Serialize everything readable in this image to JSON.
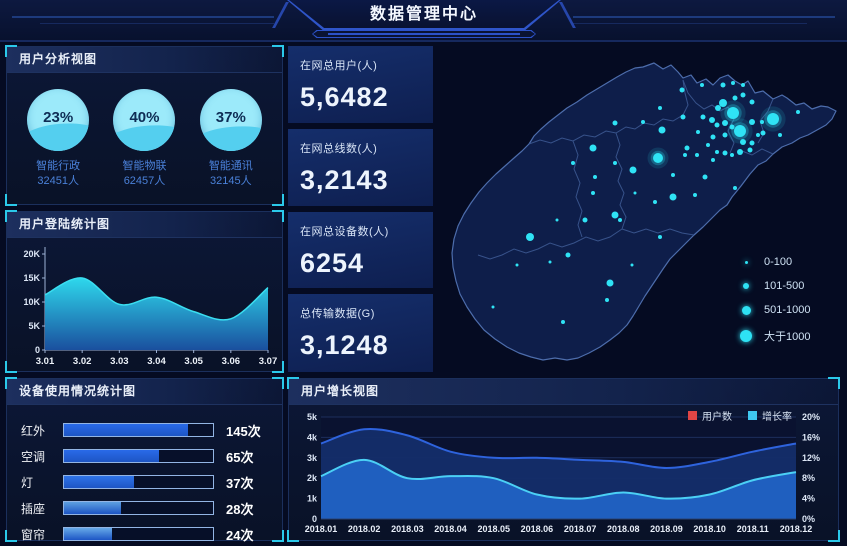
{
  "header": {
    "title": "数据管理中心"
  },
  "panels": {
    "user_analysis": {
      "title": "用户分析视图",
      "gauges": [
        {
          "percent": "23%",
          "label": "智能行政",
          "count": "32451人"
        },
        {
          "percent": "40%",
          "label": "智能物联",
          "count": "62457人"
        },
        {
          "percent": "37%",
          "label": "智能通讯",
          "count": "32145人"
        }
      ]
    },
    "login_stats": {
      "title": "用户登陆统计图"
    },
    "device_usage": {
      "title": "设备使用情况统计图",
      "rows": [
        {
          "label": "红外",
          "value": "145次"
        },
        {
          "label": "空调",
          "value": "65次"
        },
        {
          "label": "灯",
          "value": "37次"
        },
        {
          "label": "插座",
          "value": "28次"
        },
        {
          "label": "窗帘",
          "value": "24次"
        }
      ]
    },
    "user_growth": {
      "title": "用户增长视图",
      "legend": [
        {
          "label": "用户数",
          "swatch": "#e04545"
        },
        {
          "label": "增长率",
          "swatch": "#3fc8f0"
        }
      ]
    }
  },
  "stats_cards": [
    {
      "label": "在网总用户(人)",
      "value": "5,6482"
    },
    {
      "label": "在网总线数(人)",
      "value": "3,2143"
    },
    {
      "label": "在网总设备数(人)",
      "value": "6254"
    },
    {
      "label": "总传输数据(G)",
      "value": "3,1248"
    }
  ],
  "map": {
    "legend": [
      {
        "label": "0-100",
        "size": 3
      },
      {
        "label": "101-500",
        "size": 6
      },
      {
        "label": "501-1000",
        "size": 9
      },
      {
        "label": "大于1000",
        "size": 12
      }
    ],
    "dots": [
      [
        293,
        58,
        4
      ],
      [
        303,
        68,
        6
      ],
      [
        310,
        86,
        6
      ],
      [
        343,
        74,
        6
      ],
      [
        288,
        63,
        3
      ],
      [
        282,
        75,
        3
      ],
      [
        287,
        80,
        2.5
      ],
      [
        295,
        78,
        3
      ],
      [
        302,
        82,
        2.5
      ],
      [
        313,
        50,
        2.5
      ],
      [
        305,
        53,
        2.5
      ],
      [
        322,
        77,
        3
      ],
      [
        333,
        88,
        2.5
      ],
      [
        328,
        90,
        2
      ],
      [
        313,
        97,
        3
      ],
      [
        322,
        98,
        2.5
      ],
      [
        295,
        90,
        2.5
      ],
      [
        283,
        92,
        2.5
      ],
      [
        278,
        100,
        2
      ],
      [
        287,
        107,
        2
      ],
      [
        295,
        108,
        2.5
      ],
      [
        302,
        110,
        2
      ],
      [
        310,
        107,
        3
      ],
      [
        320,
        105,
        2.5
      ],
      [
        283,
        115,
        2
      ],
      [
        267,
        110,
        2
      ],
      [
        257,
        103,
        2.5
      ],
      [
        255,
        110,
        2
      ],
      [
        273,
        72,
        2.5
      ],
      [
        268,
        87,
        2
      ],
      [
        253,
        72,
        2.5
      ],
      [
        232,
        85,
        3.5
      ],
      [
        213,
        77,
        2
      ],
      [
        230,
        63,
        2
      ],
      [
        185,
        78,
        2.5
      ],
      [
        252,
        45,
        2.5
      ],
      [
        272,
        40,
        2
      ],
      [
        293,
        40,
        2.5
      ],
      [
        303,
        38,
        2
      ],
      [
        313,
        40,
        2
      ],
      [
        322,
        57,
        2.5
      ],
      [
        332,
        77,
        2
      ],
      [
        368,
        67,
        2
      ],
      [
        350,
        90,
        2
      ],
      [
        228,
        113,
        5
      ],
      [
        203,
        125,
        3.5
      ],
      [
        185,
        118,
        2
      ],
      [
        165,
        132,
        2
      ],
      [
        275,
        132,
        2.5
      ],
      [
        243,
        130,
        2
      ],
      [
        305,
        143,
        2
      ],
      [
        243,
        152,
        3.5
      ],
      [
        265,
        150,
        2
      ],
      [
        225,
        157,
        2
      ],
      [
        205,
        148,
        1.5
      ],
      [
        163,
        103,
        3.5
      ],
      [
        143,
        118,
        2
      ],
      [
        163,
        148,
        2
      ],
      [
        185,
        170,
        3.5
      ],
      [
        190,
        175,
        2
      ],
      [
        155,
        175,
        2.5
      ],
      [
        127,
        175,
        1.5
      ],
      [
        230,
        192,
        2
      ],
      [
        100,
        192,
        4
      ],
      [
        120,
        217,
        1.5
      ],
      [
        138,
        210,
        2.5
      ],
      [
        87,
        220,
        1.5
      ],
      [
        180,
        238,
        3.5
      ],
      [
        202,
        220,
        1.5
      ],
      [
        177,
        255,
        2
      ],
      [
        63,
        262,
        1.5
      ],
      [
        133,
        277,
        2
      ]
    ]
  },
  "colors": {
    "accent_cyan": "#2fe3f5",
    "series_users_line": "#2e63dd",
    "series_users_fill": "#142e69",
    "series_growth_line": "#4bd0f5",
    "series_growth_fill": "#2061c2",
    "legend_users_swatch": "#e04545",
    "legend_growth_swatch": "#3fc8f0"
  },
  "chart_data": [
    {
      "type": "area",
      "title": "用户登陆统计图",
      "x": [
        "3.01",
        "3.02",
        "3.03",
        "3.04",
        "3.05",
        "3.06",
        "3.07"
      ],
      "values": [
        11500,
        15000,
        9500,
        11000,
        8000,
        6500,
        13000
      ],
      "ylim": [
        0,
        20000
      ],
      "yticks": [
        "0",
        "5K",
        "10K",
        "15K",
        "20K"
      ],
      "grid": false,
      "legend_position": "none"
    },
    {
      "type": "bar",
      "title": "设备使用情况统计图",
      "orientation": "horizontal",
      "categories": [
        "红外",
        "空调",
        "灯",
        "插座",
        "窗帘"
      ],
      "values": [
        145,
        65,
        37,
        28,
        24
      ],
      "unit": "次",
      "fill_pct": [
        83,
        64,
        47,
        38,
        32
      ],
      "colors": [
        "#2a6ae8",
        "#2a6ae8",
        "#2f74e8",
        "#5d9fe0",
        "#66a9e8"
      ]
    },
    {
      "type": "area",
      "title": "用户增长视图",
      "x": [
        "2018.01",
        "2018.02",
        "2018.03",
        "2018.04",
        "2018.05",
        "2018.06",
        "2018.07",
        "2018.08",
        "2018.09",
        "2018.10",
        "2018.11",
        "2018.12"
      ],
      "series": [
        {
          "name": "用户数",
          "axis": "left",
          "values": [
            3700,
            4400,
            4100,
            3300,
            3000,
            3000,
            2900,
            2800,
            2500,
            2800,
            3300,
            3700
          ]
        },
        {
          "name": "增长率",
          "axis": "right",
          "values": [
            8.4,
            11.6,
            8,
            8.4,
            8,
            4.8,
            4,
            5.2,
            4,
            4.8,
            7.6,
            9.2
          ]
        }
      ],
      "ylim_left": [
        0,
        5000
      ],
      "yticks_left": [
        "0",
        "1k",
        "2k",
        "3k",
        "4k",
        "5k"
      ],
      "ylim_right": [
        0,
        20
      ],
      "yticks_right": [
        "0%",
        "4%",
        "8%",
        "12%",
        "16%",
        "20%"
      ],
      "legend": [
        "用户数",
        "增长率"
      ],
      "legend_position": "top-right",
      "grid": true
    },
    {
      "type": "scatter",
      "title": "区域分布地图",
      "legend": [
        "0-100",
        "101-500",
        "501-1000",
        "大于1000"
      ],
      "note": "points stored in map.dots as [x,y,r] in 417x330 viewBox"
    },
    {
      "type": "pie",
      "title": "用户分析视图",
      "items": [
        {
          "label": "智能行政",
          "percent": 23,
          "count": 32451
        },
        {
          "label": "智能物联",
          "percent": 40,
          "count": 62457
        },
        {
          "label": "智能通讯",
          "percent": 37,
          "count": 32145
        }
      ]
    }
  ]
}
